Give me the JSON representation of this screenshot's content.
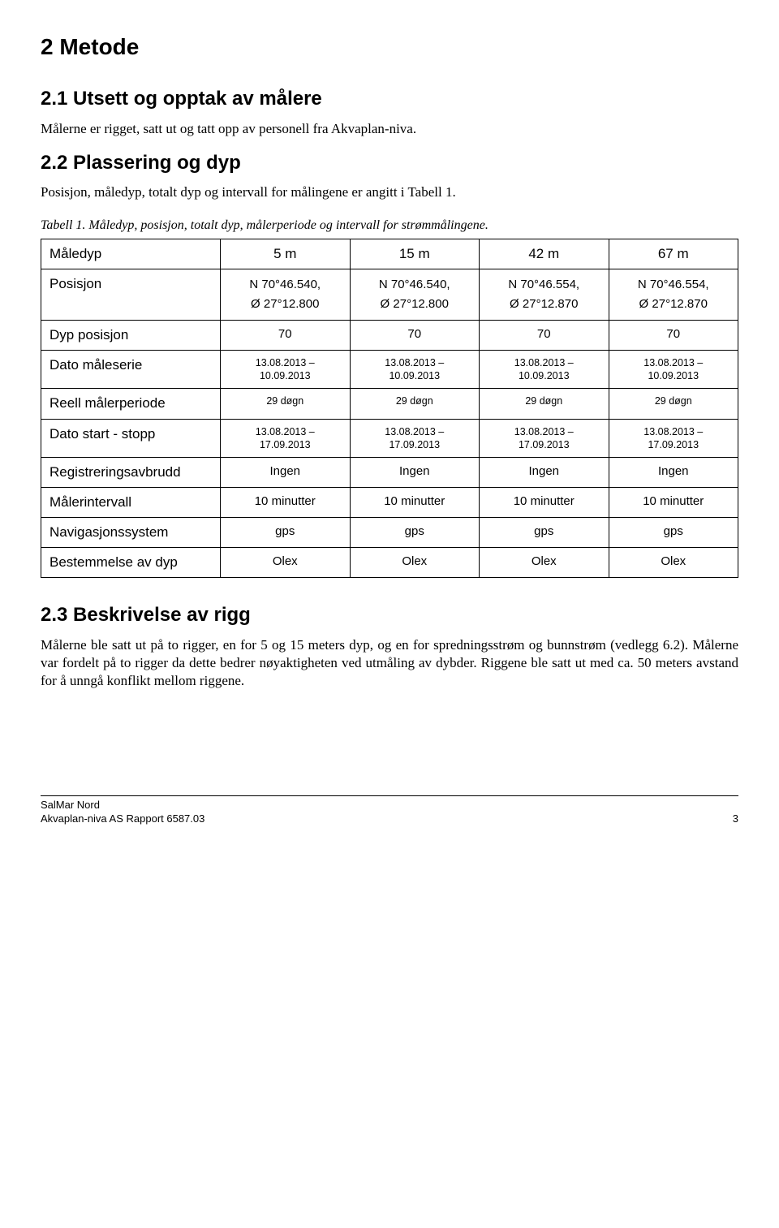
{
  "h1": "2 Metode",
  "sec21": {
    "title": "2.1 Utsett og opptak av målere",
    "text": "Målerne er rigget, satt ut og tatt opp av personell fra Akvaplan-niva."
  },
  "sec22": {
    "title": "2.2 Plassering og dyp",
    "text": "Posisjon, måledyp, totalt dyp og intervall for målingene er angitt i Tabell 1.",
    "caption": "Tabell 1. Måledyp, posisjon, totalt dyp, målerperiode og intervall for strømmålingene."
  },
  "table": {
    "columns": [
      "5 m",
      "15 m",
      "42 m",
      "67 m"
    ],
    "rows": {
      "maledyp": {
        "label": "Måledyp",
        "vals": [
          "5 m",
          "15 m",
          "42 m",
          "67 m"
        ]
      },
      "posisjon": {
        "label": "Posisjon",
        "vals": [
          {
            "lat": "N 70°46.540,",
            "lon": "Ø 27°12.800"
          },
          {
            "lat": "N 70°46.540,",
            "lon": "Ø 27°12.800"
          },
          {
            "lat": "N 70°46.554,",
            "lon": "Ø 27°12.870"
          },
          {
            "lat": "N 70°46.554,",
            "lon": "Ø 27°12.870"
          }
        ]
      },
      "dypposisjon": {
        "label": "Dyp posisjon",
        "vals": [
          "70",
          "70",
          "70",
          "70"
        ]
      },
      "datomaleserie": {
        "label": "Dato måleserie",
        "vals": [
          {
            "a": "13.08.2013 –",
            "b": "10.09.2013"
          },
          {
            "a": "13.08.2013 –",
            "b": "10.09.2013"
          },
          {
            "a": "13.08.2013 –",
            "b": "10.09.2013"
          },
          {
            "a": "13.08.2013 –",
            "b": "10.09.2013"
          }
        ]
      },
      "reell": {
        "label": "Reell målerperiode",
        "vals": [
          "29 døgn",
          "29 døgn",
          "29 døgn",
          "29 døgn"
        ]
      },
      "datostart": {
        "label": "Dato start - stopp",
        "vals": [
          {
            "a": "13.08.2013 –",
            "b": "17.09.2013"
          },
          {
            "a": "13.08.2013 –",
            "b": "17.09.2013"
          },
          {
            "a": "13.08.2013 –",
            "b": "17.09.2013"
          },
          {
            "a": "13.08.2013 –",
            "b": "17.09.2013"
          }
        ]
      },
      "registrering": {
        "label": "Registreringsavbrudd",
        "vals": [
          "Ingen",
          "Ingen",
          "Ingen",
          "Ingen"
        ]
      },
      "malerintervall": {
        "label": "Målerintervall",
        "vals": [
          "10 minutter",
          "10 minutter",
          "10 minutter",
          "10 minutter"
        ]
      },
      "navigasjon": {
        "label": "Navigasjonssystem",
        "vals": [
          "gps",
          "gps",
          "gps",
          "gps"
        ]
      },
      "bestemmelse": {
        "label": "Bestemmelse av dyp",
        "vals": [
          "Olex",
          "Olex",
          "Olex",
          "Olex"
        ]
      }
    }
  },
  "sec23": {
    "title": "2.3 Beskrivelse av rigg",
    "text": "Målerne ble satt ut på to rigger, en for 5 og 15 meters dyp, og en for spredningsstrøm og bunnstrøm (vedlegg 6.2). Målerne var fordelt på to rigger da dette bedrer nøyaktigheten ved utmåling av dybder. Riggene ble satt ut med ca. 50 meters avstand for å unngå konflikt mellom riggene."
  },
  "footer": {
    "line1": "SalMar Nord",
    "line2": "Akvaplan-niva AS Rapport 6587.03",
    "page": "3"
  }
}
